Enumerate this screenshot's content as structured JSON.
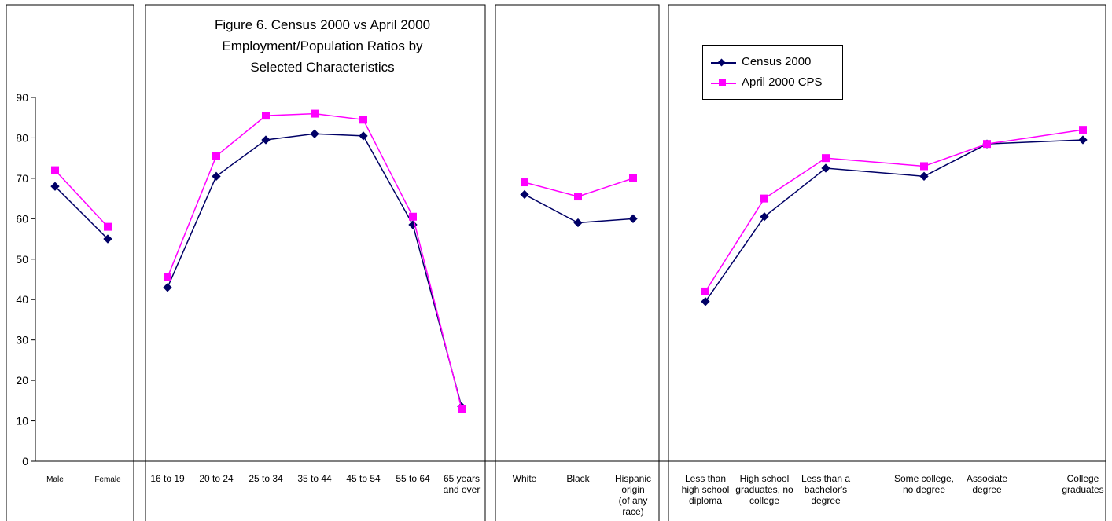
{
  "chart_data": {
    "type": "line",
    "title": "Figure 6. Census 2000 vs April 2000\nEmployment/Population Ratios by\nSelected Characteristics",
    "ylim": [
      0,
      90
    ],
    "yticks": [
      0,
      10,
      20,
      30,
      40,
      50,
      60,
      70,
      80,
      90
    ],
    "grid": false,
    "legend": {
      "position": "top-right",
      "entries": [
        {
          "name": "Census 2000",
          "color": "#000066",
          "marker": "diamond"
        },
        {
          "name": "April 2000 CPS",
          "color": "#ff00ff",
          "marker": "square"
        }
      ]
    },
    "panels": [
      {
        "name": "sex",
        "categories": [
          "Male",
          "Female"
        ],
        "series": [
          {
            "name": "Census 2000",
            "values": [
              68,
              55
            ]
          },
          {
            "name": "April 2000 CPS",
            "values": [
              72,
              58
            ]
          }
        ]
      },
      {
        "name": "age",
        "categories": [
          "16 to 19",
          "20 to 24",
          "25 to 34",
          "35 to 44",
          "45 to 54",
          "55 to 64",
          "65 years and over"
        ],
        "series": [
          {
            "name": "Census 2000",
            "values": [
              43,
              70.5,
              79.5,
              81,
              80.5,
              58.5,
              13.5
            ]
          },
          {
            "name": "April 2000 CPS",
            "values": [
              45.5,
              75.5,
              85.5,
              86,
              84.5,
              60.5,
              13
            ]
          }
        ]
      },
      {
        "name": "race",
        "categories": [
          "White",
          "Black",
          "Hispanic origin (of any race)"
        ],
        "series": [
          {
            "name": "Census 2000",
            "values": [
              66,
              59,
              60
            ]
          },
          {
            "name": "April 2000 CPS",
            "values": [
              69,
              65.5,
              70
            ]
          }
        ]
      },
      {
        "name": "education",
        "categories": [
          "Less than high school diploma",
          "High school graduates, no college",
          "Less than a bachelor's degree",
          "Some college, no degree",
          "Associate degree",
          "College graduates"
        ],
        "series": [
          {
            "name": "Census 2000",
            "values": [
              39.5,
              60.5,
              72.5,
              70.5,
              78.5,
              79.5
            ]
          },
          {
            "name": "April 2000 CPS",
            "values": [
              42,
              65,
              75,
              73,
              78.5,
              82
            ]
          }
        ]
      }
    ]
  }
}
